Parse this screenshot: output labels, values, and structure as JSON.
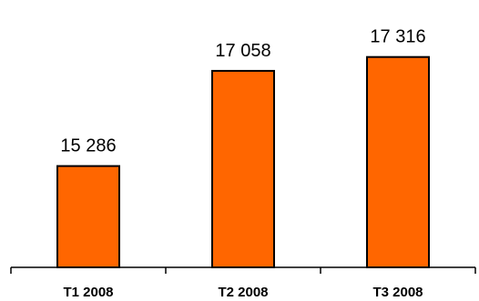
{
  "chart_data": {
    "type": "bar",
    "categories": [
      "T1 2008",
      "T2 2008",
      "T3 2008"
    ],
    "values": [
      15286,
      17058,
      17316
    ],
    "value_labels": [
      "15 286",
      "17 058",
      "17 316"
    ],
    "ylim": [
      13400,
      17700
    ],
    "grid": false,
    "colors": {
      "bar_fill": "#FF6600",
      "bar_stroke": "#000000"
    }
  }
}
